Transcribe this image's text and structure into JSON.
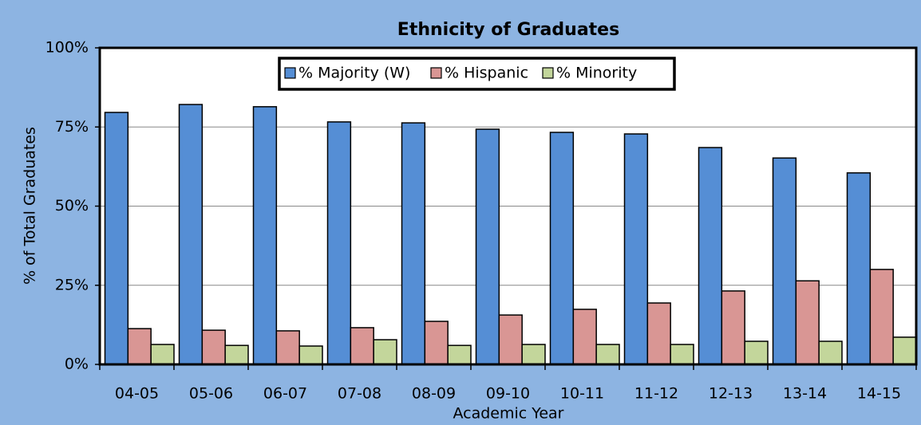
{
  "chart_data": {
    "type": "bar",
    "title": "Ethnicity of Graduates",
    "x_label": "Academic Year",
    "y_label": "% of Total Graduates",
    "categories": [
      "04-05",
      "05-06",
      "06-07",
      "07-08",
      "08-09",
      "09-10",
      "10-11",
      "11-12",
      "12-13",
      "13-14",
      "14-15"
    ],
    "series": [
      {
        "name": "% Majority (W)",
        "color": "#558ed5",
        "values": [
          79.6,
          82.1,
          81.4,
          76.6,
          76.3,
          74.3,
          73.3,
          72.8,
          68.5,
          65.2,
          60.5
        ]
      },
      {
        "name": "% Hispanic",
        "color": "#d99694",
        "values": [
          11.3,
          10.8,
          10.6,
          11.6,
          13.6,
          15.6,
          17.4,
          19.4,
          23.2,
          26.4,
          30.0
        ]
      },
      {
        "name": "% Minority",
        "color": "#c3d69b",
        "values": [
          6.3,
          6.0,
          5.8,
          7.8,
          6.0,
          6.3,
          6.3,
          6.3,
          7.3,
          7.3,
          8.6
        ]
      }
    ],
    "ylim": [
      0,
      100
    ],
    "yticks": [
      {
        "value": 0,
        "label": "0%"
      },
      {
        "value": 25,
        "label": "25%"
      },
      {
        "value": 50,
        "label": "50%"
      },
      {
        "value": 75,
        "label": "75%"
      },
      {
        "value": 100,
        "label": "100%"
      }
    ],
    "grid": true,
    "legend": "top"
  }
}
